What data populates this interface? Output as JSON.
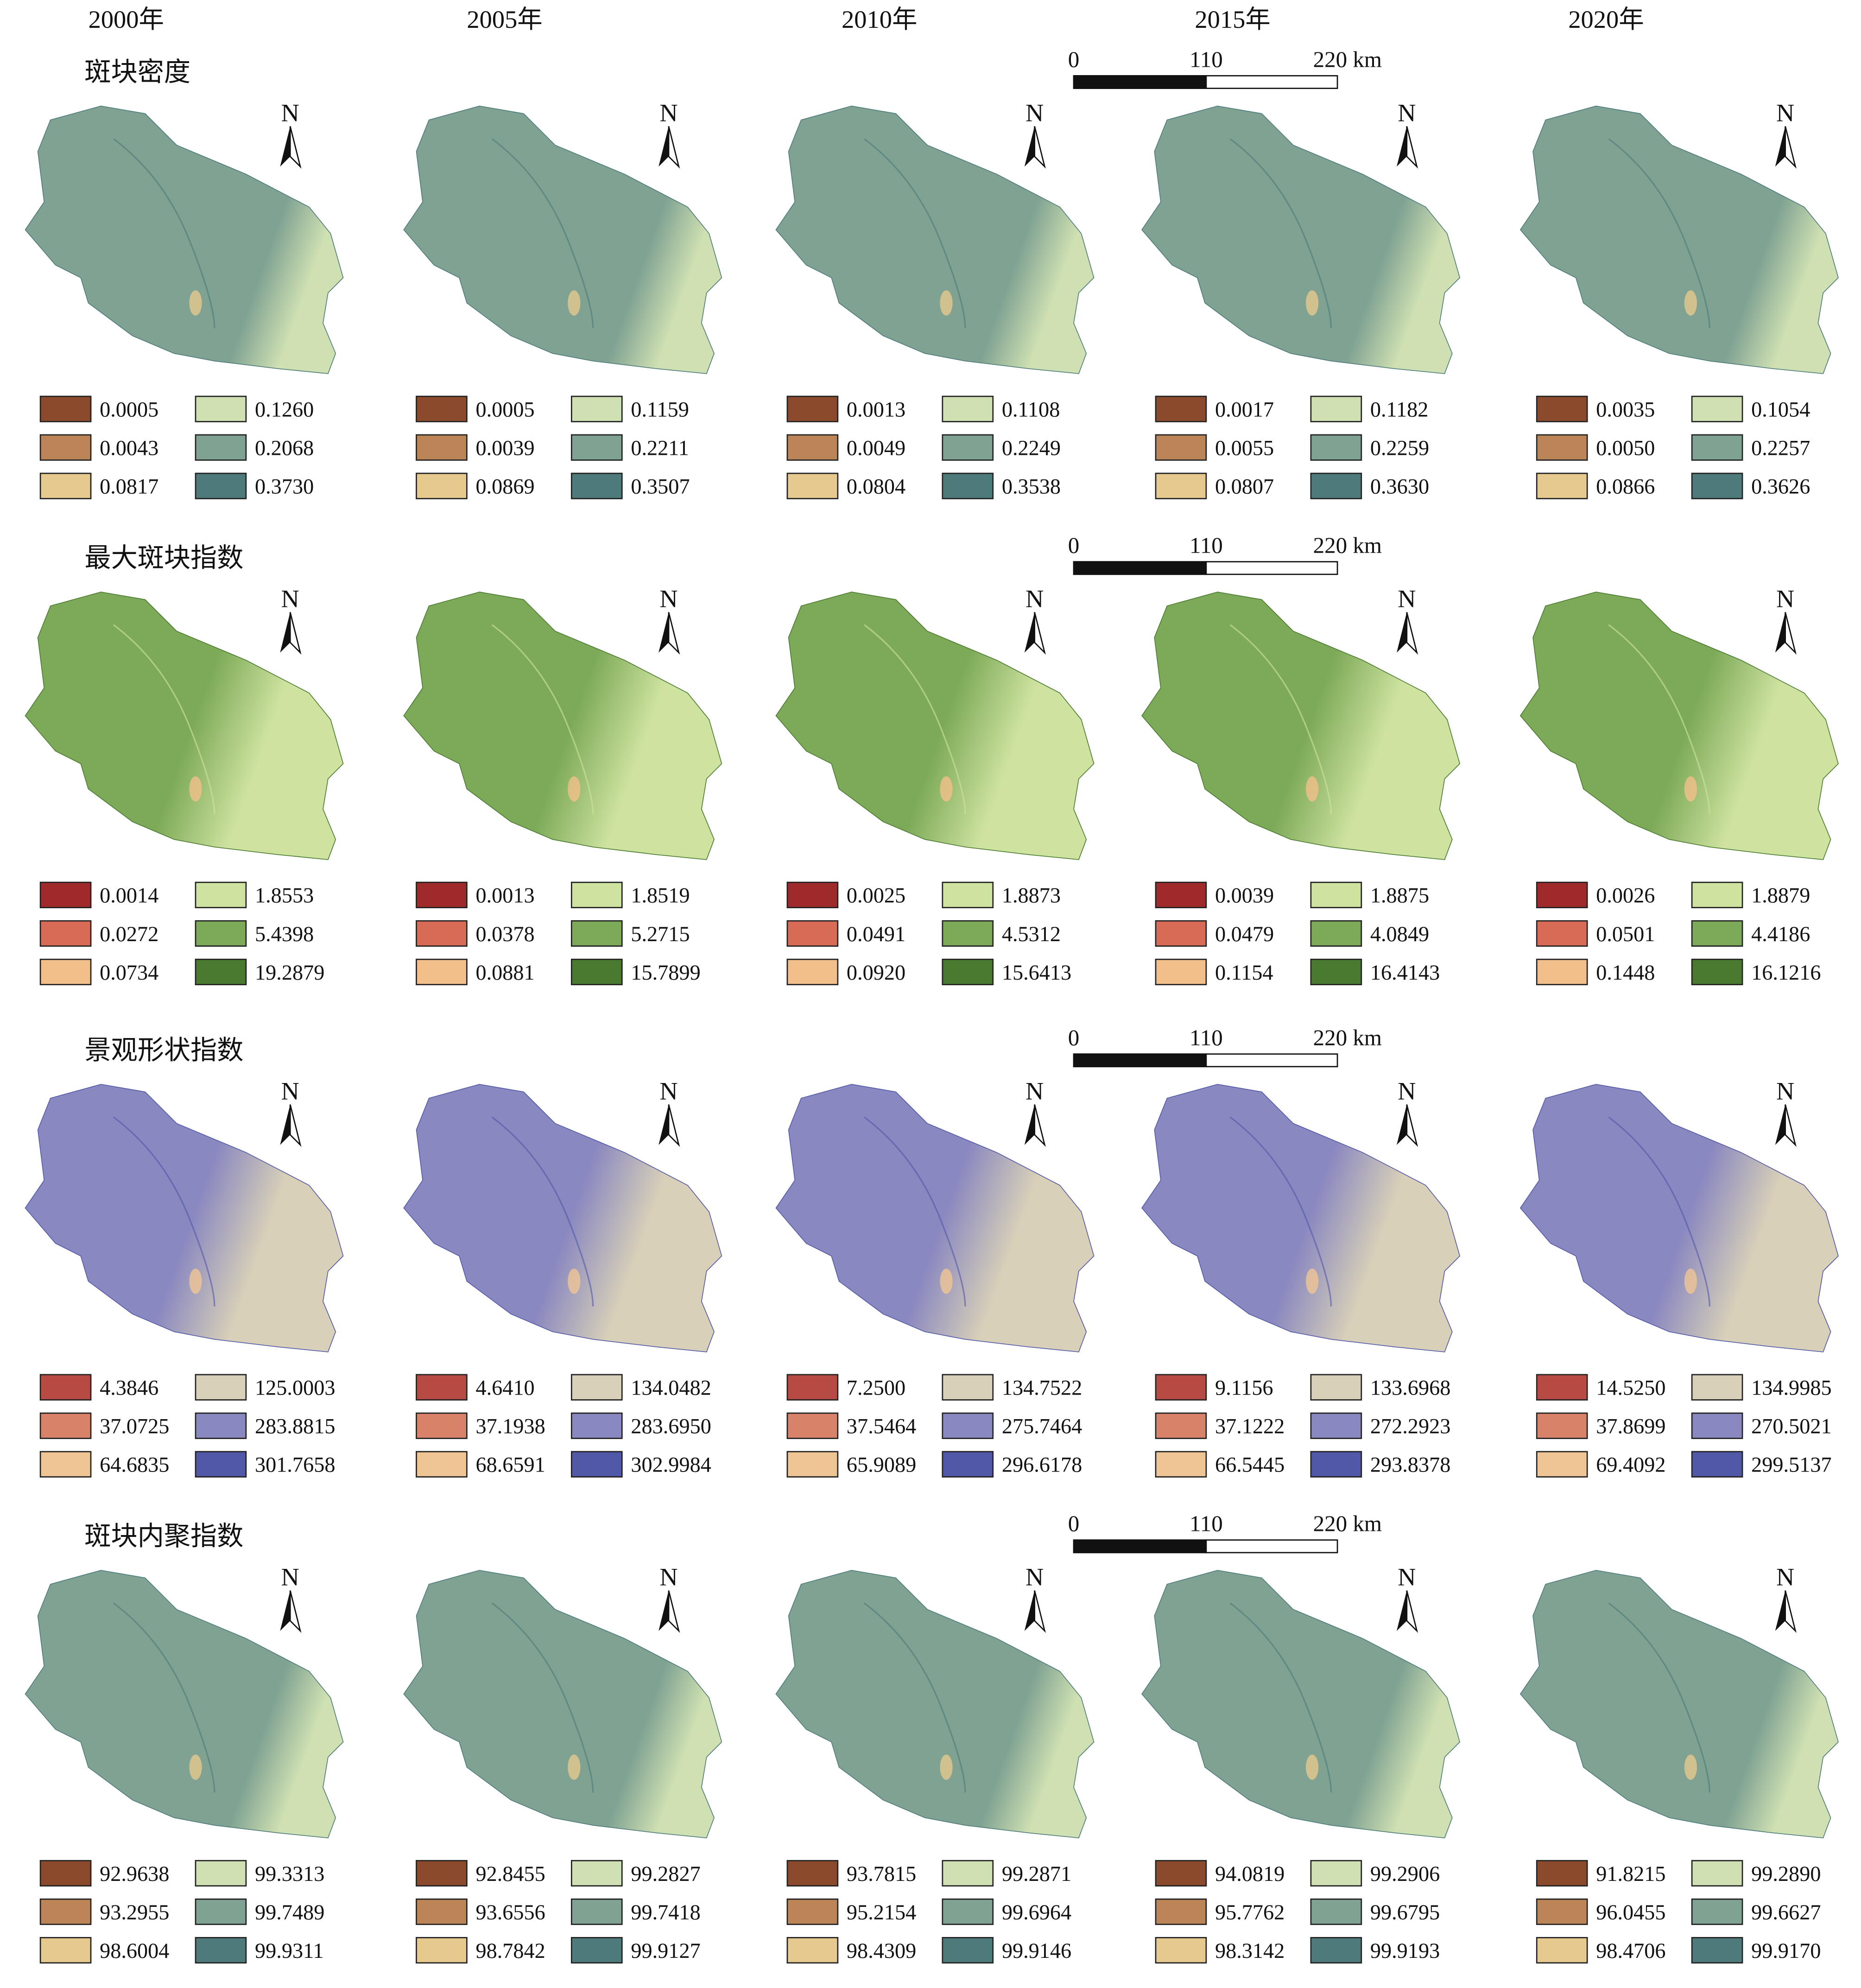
{
  "north": "N",
  "scale_bar": {
    "labels": [
      "0",
      "110",
      "220 km"
    ]
  },
  "years": [
    "2000年",
    "2005年",
    "2010年",
    "2015年",
    "2020年"
  ],
  "panels": [
    {
      "title": "斑块密度",
      "colors": [
        "#8b4a2b",
        "#bb8558",
        "#e5c98f",
        "#cfe0b2",
        "#7fa292",
        "#4d7a7a"
      ],
      "legends": [
        [
          "0.0005",
          "0.0043",
          "0.0817",
          "0.1260",
          "0.2068",
          "0.3730"
        ],
        [
          "0.0005",
          "0.0039",
          "0.0869",
          "0.1159",
          "0.2211",
          "0.3507"
        ],
        [
          "0.0013",
          "0.0049",
          "0.0804",
          "0.1108",
          "0.2249",
          "0.3538"
        ],
        [
          "0.0017",
          "0.0055",
          "0.0807",
          "0.1182",
          "0.2259",
          "0.3630"
        ],
        [
          "0.0035",
          "0.0050",
          "0.0866",
          "0.1054",
          "0.2257",
          "0.3626"
        ]
      ]
    },
    {
      "title": "最大斑块指数",
      "colors": [
        "#9e2a2b",
        "#d86b55",
        "#f2bf8b",
        "#cfe3a0",
        "#7daa58",
        "#4a7a2f"
      ],
      "legends": [
        [
          "0.0014",
          "0.0272",
          "0.0734",
          "1.8553",
          "5.4398",
          "19.2879"
        ],
        [
          "0.0013",
          "0.0378",
          "0.0881",
          "1.8519",
          "5.2715",
          "15.7899"
        ],
        [
          "0.0025",
          "0.0491",
          "0.0920",
          "1.8873",
          "4.5312",
          "15.6413"
        ],
        [
          "0.0039",
          "0.0479",
          "0.1154",
          "1.8875",
          "4.0849",
          "16.4143"
        ],
        [
          "0.0026",
          "0.0501",
          "0.1448",
          "1.8879",
          "4.4186",
          "16.1216"
        ]
      ]
    },
    {
      "title": "景观形状指数",
      "colors": [
        "#b84a44",
        "#d9826a",
        "#f0c594",
        "#d8d0b8",
        "#8a88c0",
        "#5258a8"
      ],
      "legends": [
        [
          "4.3846",
          "37.0725",
          "64.6835",
          "125.0003",
          "283.8815",
          "301.7658"
        ],
        [
          "4.6410",
          "37.1938",
          "68.6591",
          "134.0482",
          "283.6950",
          "302.9984"
        ],
        [
          "7.2500",
          "37.5464",
          "65.9089",
          "134.7522",
          "275.7464",
          "296.6178"
        ],
        [
          "9.1156",
          "37.1222",
          "66.5445",
          "133.6968",
          "272.2923",
          "293.8378"
        ],
        [
          "14.5250",
          "37.8699",
          "69.4092",
          "134.9985",
          "270.5021",
          "299.5137"
        ]
      ]
    },
    {
      "title": "斑块内聚指数",
      "colors": [
        "#8b4a2b",
        "#bb8558",
        "#e5c98f",
        "#cfe0b2",
        "#7fa292",
        "#4d7a7a"
      ],
      "legends": [
        [
          "92.9638",
          "93.2955",
          "98.6004",
          "99.3313",
          "99.7489",
          "99.9311"
        ],
        [
          "92.8455",
          "93.6556",
          "98.7842",
          "99.2827",
          "99.7418",
          "99.9127"
        ],
        [
          "93.7815",
          "95.2154",
          "98.4309",
          "99.2871",
          "99.6964",
          "99.9146"
        ],
        [
          "94.0819",
          "95.7762",
          "98.3142",
          "99.2906",
          "99.6795",
          "99.9193"
        ],
        [
          "91.8215",
          "96.0455",
          "98.4706",
          "99.2890",
          "99.6627",
          "99.9170"
        ]
      ]
    }
  ]
}
